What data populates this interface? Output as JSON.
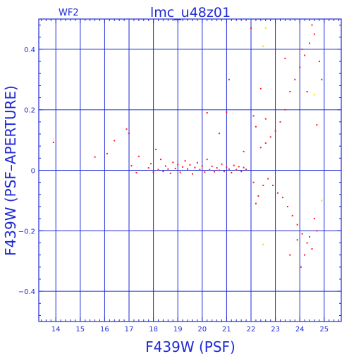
{
  "window": {
    "chip_label": "WF2",
    "title": "lmc_u48z01"
  },
  "colors": {
    "axis": "#1f2ad6",
    "grid": "#1f2ad6",
    "points": "#ff1a1a",
    "highlight_points": "#ffd200",
    "background": "#ffffff"
  },
  "chart_data": {
    "type": "scatter",
    "title": "lmc_u48z01",
    "subtitle": "WF2",
    "xlabel": "F439W (PSF)",
    "ylabel": "F439W (PSF–APERTURE)",
    "xlim": [
      13.3,
      25.7
    ],
    "ylim": [
      -0.5,
      0.5
    ],
    "xticks": [
      14,
      15,
      16,
      17,
      18,
      19,
      20,
      21,
      22,
      23,
      24,
      25
    ],
    "yticks": [
      -0.4,
      -0.2,
      0,
      0.2,
      0.4
    ],
    "xtick_labels": [
      "14",
      "15",
      "16",
      "17",
      "18",
      "19",
      "20",
      "21",
      "22",
      "23",
      "24",
      "25"
    ],
    "ytick_labels": [
      "−0.4",
      "−0.2",
      "0",
      "0.2",
      "0.4"
    ],
    "grid": true,
    "series": [
      {
        "color": "#ff1a1a",
        "points": [
          [
            13.9,
            0.092
          ],
          [
            15.6,
            0.044
          ],
          [
            16.1,
            0.055
          ],
          [
            16.4,
            0.098
          ],
          [
            16.9,
            0.136
          ],
          [
            17.0,
            0.122
          ],
          [
            17.1,
            0.015
          ],
          [
            17.3,
            -0.008
          ],
          [
            17.4,
            0.046
          ],
          [
            17.8,
            0.008
          ],
          [
            17.9,
            0.022
          ],
          [
            18.0,
            -0.006
          ],
          [
            18.1,
            0.069
          ],
          [
            18.2,
            0.002
          ],
          [
            18.3,
            0.036
          ],
          [
            18.4,
            -0.004
          ],
          [
            18.5,
            0.014
          ],
          [
            18.6,
            0.004
          ],
          [
            18.7,
            -0.01
          ],
          [
            18.8,
            0.026
          ],
          [
            18.9,
            0.006
          ],
          [
            19.0,
            0.019
          ],
          [
            19.1,
            -0.007
          ],
          [
            19.2,
            0.011
          ],
          [
            19.3,
            0.031
          ],
          [
            19.4,
            0.004
          ],
          [
            19.5,
            0.018
          ],
          [
            19.6,
            -0.012
          ],
          [
            19.7,
            0.009
          ],
          [
            19.8,
            0.025
          ],
          [
            19.9,
            0.002
          ],
          [
            20.0,
            0.014
          ],
          [
            20.1,
            -0.006
          ],
          [
            20.2,
            0.036
          ],
          [
            20.3,
            0.002
          ],
          [
            20.4,
            0.013
          ],
          [
            20.5,
            -0.005
          ],
          [
            20.6,
            0.008
          ],
          [
            20.7,
            0.0
          ],
          [
            20.8,
            0.02
          ],
          [
            20.9,
            -0.004
          ],
          [
            21.0,
            0.01
          ],
          [
            21.1,
            0.004
          ],
          [
            21.2,
            -0.008
          ],
          [
            21.3,
            0.016
          ],
          [
            21.4,
            0.002
          ],
          [
            21.5,
            0.012
          ],
          [
            21.6,
            -0.004
          ],
          [
            21.7,
            0.009
          ],
          [
            21.8,
            0.003
          ],
          [
            20.2,
            0.19
          ],
          [
            20.7,
            0.122
          ],
          [
            21.0,
            0.192
          ],
          [
            21.1,
            0.3
          ],
          [
            21.7,
            0.062
          ],
          [
            22.0,
            0.47
          ],
          [
            22.1,
            0.18
          ],
          [
            22.2,
            0.144
          ],
          [
            22.4,
            0.27
          ],
          [
            22.6,
            0.17
          ],
          [
            22.1,
            -0.04
          ],
          [
            22.2,
            -0.11
          ],
          [
            22.3,
            -0.085
          ],
          [
            22.4,
            0.075
          ],
          [
            22.5,
            -0.05
          ],
          [
            22.6,
            0.09
          ],
          [
            22.7,
            -0.028
          ],
          [
            22.8,
            0.11
          ],
          [
            22.9,
            -0.05
          ],
          [
            23.0,
            0.13
          ],
          [
            23.1,
            -0.075
          ],
          [
            23.2,
            0.16
          ],
          [
            23.3,
            -0.09
          ],
          [
            23.4,
            0.2
          ],
          [
            23.5,
            -0.12
          ],
          [
            23.6,
            0.26
          ],
          [
            23.7,
            -0.15
          ],
          [
            23.8,
            0.3
          ],
          [
            23.9,
            -0.18
          ],
          [
            24.0,
            0.34
          ],
          [
            24.1,
            -0.21
          ],
          [
            24.2,
            0.38
          ],
          [
            24.3,
            -0.24
          ],
          [
            24.4,
            0.42
          ],
          [
            24.5,
            -0.26
          ],
          [
            24.6,
            0.45
          ],
          [
            24.7,
            -0.2
          ],
          [
            24.8,
            0.36
          ],
          [
            24.9,
            0.3
          ],
          [
            24.05,
            -0.32
          ],
          [
            24.1,
            0.4
          ],
          [
            24.2,
            -0.28
          ],
          [
            24.4,
            -0.22
          ],
          [
            24.5,
            0.48
          ],
          [
            24.7,
            0.15
          ],
          [
            23.4,
            0.37
          ],
          [
            23.6,
            -0.28
          ],
          [
            23.9,
            -0.23
          ],
          [
            24.3,
            0.26
          ],
          [
            24.6,
            -0.16
          ]
        ]
      },
      {
        "color": "#ffd200",
        "points": [
          [
            22.6,
            0.47
          ],
          [
            22.5,
            0.41
          ],
          [
            22.5,
            -0.245
          ],
          [
            24.9,
            -0.1
          ],
          [
            24.6,
            0.25
          ]
        ]
      }
    ]
  }
}
